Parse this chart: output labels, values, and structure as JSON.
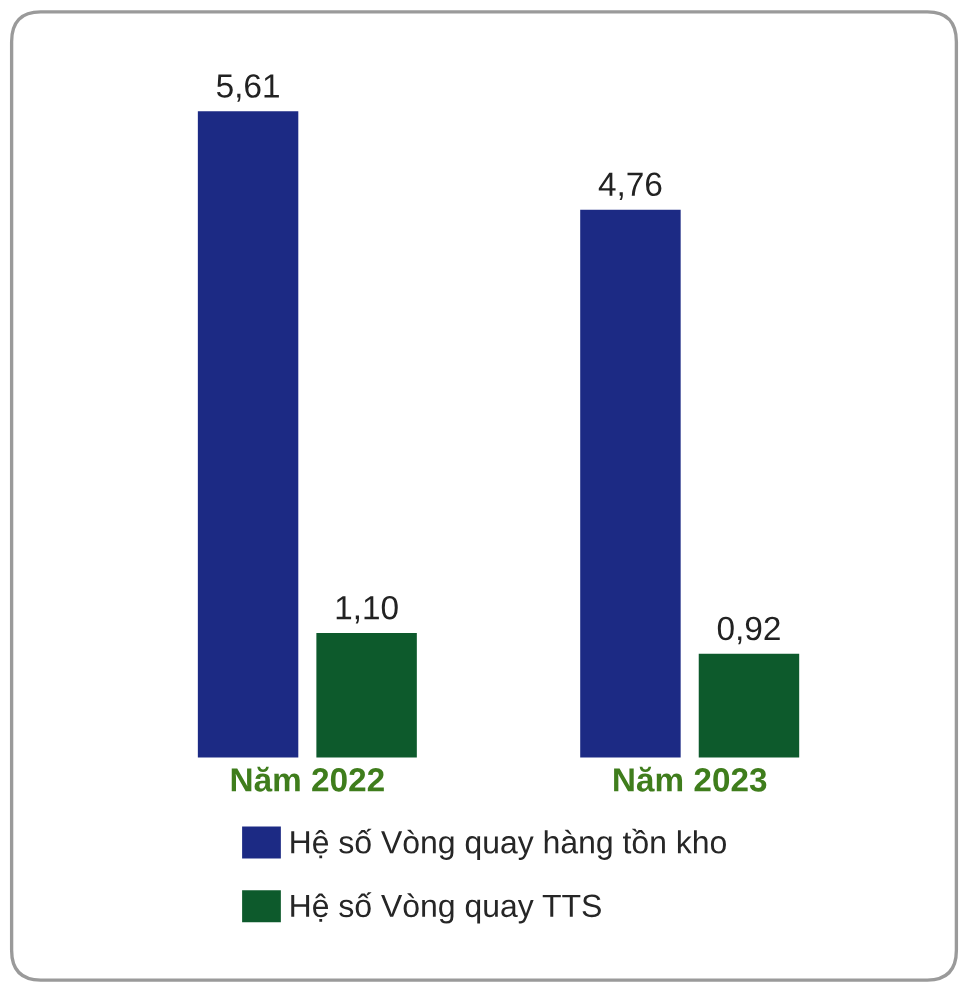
{
  "chart_data": {
    "type": "bar",
    "categories": [
      "Năm 2022",
      "Năm 2023"
    ],
    "series": [
      {
        "name": "Hệ số Vòng quay hàng tồn kho",
        "color": "#1c2a84",
        "values": [
          5.61,
          4.76
        ],
        "value_labels": [
          "5,61",
          "4,76"
        ]
      },
      {
        "name": "Hệ số Vòng quay TTS",
        "color": "#0d5a2c",
        "values": [
          1.1,
          0.92
        ],
        "value_labels": [
          "1,10",
          "0,92"
        ]
      }
    ],
    "legend": "bottom"
  }
}
